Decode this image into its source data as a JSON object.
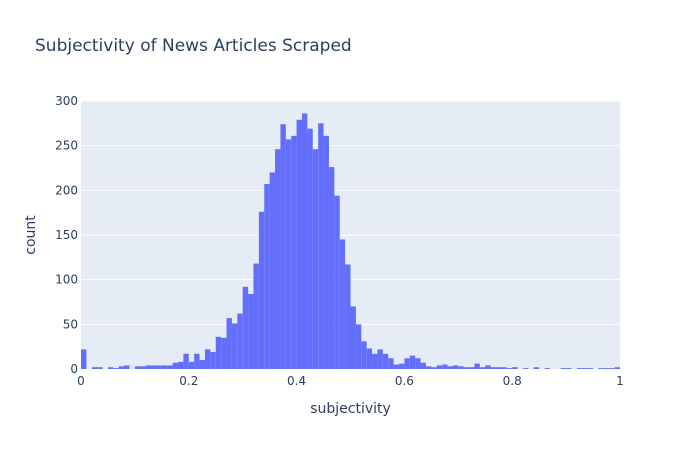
{
  "chart_data": {
    "type": "bar",
    "title": "Subjectivity of News Articles Scraped",
    "xlabel": "subjectivity",
    "ylabel": "count",
    "xlim": [
      0,
      1
    ],
    "ylim": [
      0,
      300
    ],
    "x_ticks": [
      0,
      0.2,
      0.4,
      0.6,
      0.8,
      1
    ],
    "x_tick_labels": [
      "0",
      "0.2",
      "0.4",
      "0.6",
      "0.8",
      "1"
    ],
    "y_ticks": [
      0,
      50,
      100,
      150,
      200,
      250,
      300
    ],
    "y_tick_labels": [
      "0",
      "50",
      "100",
      "150",
      "200",
      "250",
      "300"
    ],
    "grid": true,
    "legend": "none",
    "bin_width": 0.01,
    "bin_starts": [
      0.0,
      0.01,
      0.02,
      0.03,
      0.04,
      0.05,
      0.06,
      0.07,
      0.08,
      0.09,
      0.1,
      0.11,
      0.12,
      0.13,
      0.14,
      0.15,
      0.16,
      0.17,
      0.18,
      0.19,
      0.2,
      0.21,
      0.22,
      0.23,
      0.24,
      0.25,
      0.26,
      0.27,
      0.28,
      0.29,
      0.3,
      0.31,
      0.32,
      0.33,
      0.34,
      0.35,
      0.36,
      0.37,
      0.38,
      0.39,
      0.4,
      0.41,
      0.42,
      0.43,
      0.44,
      0.45,
      0.46,
      0.47,
      0.48,
      0.49,
      0.5,
      0.51,
      0.52,
      0.53,
      0.54,
      0.55,
      0.56,
      0.57,
      0.58,
      0.59,
      0.6,
      0.61,
      0.62,
      0.63,
      0.64,
      0.65,
      0.66,
      0.67,
      0.68,
      0.69,
      0.7,
      0.71,
      0.72,
      0.73,
      0.74,
      0.75,
      0.76,
      0.77,
      0.78,
      0.79,
      0.8,
      0.81,
      0.82,
      0.83,
      0.84,
      0.85,
      0.86,
      0.87,
      0.88,
      0.89,
      0.9,
      0.91,
      0.92,
      0.93,
      0.94,
      0.95,
      0.96,
      0.97,
      0.98,
      0.99
    ],
    "values": [
      22,
      0,
      2,
      2,
      0,
      2,
      1,
      3,
      4,
      0,
      3,
      3,
      4,
      4,
      4,
      4,
      4,
      7,
      8,
      17,
      8,
      17,
      10,
      22,
      19,
      36,
      35,
      57,
      51,
      62,
      92,
      84,
      118,
      176,
      207,
      220,
      246,
      274,
      257,
      261,
      279,
      286,
      269,
      246,
      275,
      261,
      226,
      194,
      145,
      117,
      70,
      50,
      31,
      23,
      17,
      22,
      17,
      12,
      5,
      6,
      12,
      15,
      12,
      7,
      3,
      2,
      4,
      5,
      3,
      4,
      3,
      2,
      2,
      6,
      2,
      4,
      2,
      2,
      2,
      1,
      2,
      0,
      1,
      0,
      2,
      0,
      1,
      0,
      0,
      1,
      1,
      0,
      1,
      1,
      1,
      0,
      1,
      1,
      1,
      2
    ]
  },
  "colors": {
    "bar": "#636efa",
    "plot_bg": "#e5ecf6",
    "paper_bg": "#ffffff",
    "grid": "#ffffff",
    "text": "#2a3f5f"
  }
}
